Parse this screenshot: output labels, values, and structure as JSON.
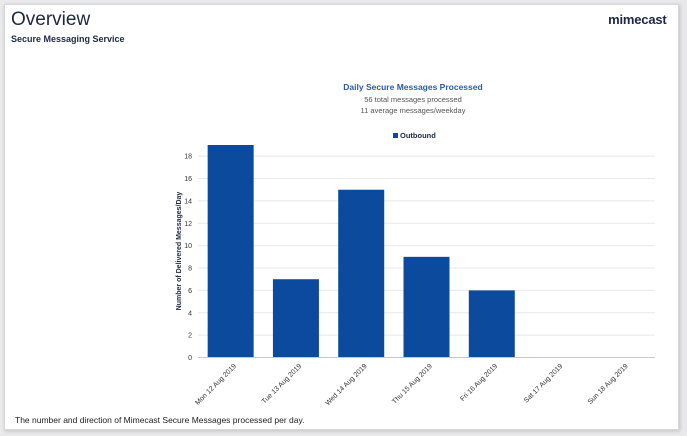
{
  "header": {
    "title": "Overview",
    "subtitle": "Secure Messaging Service",
    "logo_text": "mimecast",
    "logo_mark": "·"
  },
  "footer": {
    "note": "The number and direction of Mimecast Secure Messages processed per day."
  },
  "colors": {
    "bar": "#0c4a9e",
    "title": "#1d2846",
    "chart_title": "#2a5aa8"
  },
  "chart_data": {
    "type": "bar",
    "title": "Daily Secure Messages Processed",
    "subtitles": [
      "56 total messages processed",
      "11 average messages/weekday"
    ],
    "legend": {
      "placement": "top-center",
      "entries": [
        "Outbound"
      ]
    },
    "ylabel": "Number of Delivered Messages/Day",
    "xlabel": "",
    "ylim": [
      0,
      19
    ],
    "yticks": [
      0,
      2,
      4,
      6,
      8,
      10,
      12,
      14,
      16,
      18
    ],
    "grid": true,
    "categories": [
      "Mon 12 Aug 2019",
      "Tue 13 Aug 2019",
      "Wed 14 Aug 2019",
      "Thu 15 Aug 2019",
      "Fri 16 Aug 2019",
      "Sat 17 Aug 2019",
      "Sun 18 Aug 2019"
    ],
    "series": [
      {
        "name": "Outbound",
        "values": [
          19,
          7,
          15,
          9,
          6,
          0,
          0
        ]
      }
    ]
  }
}
